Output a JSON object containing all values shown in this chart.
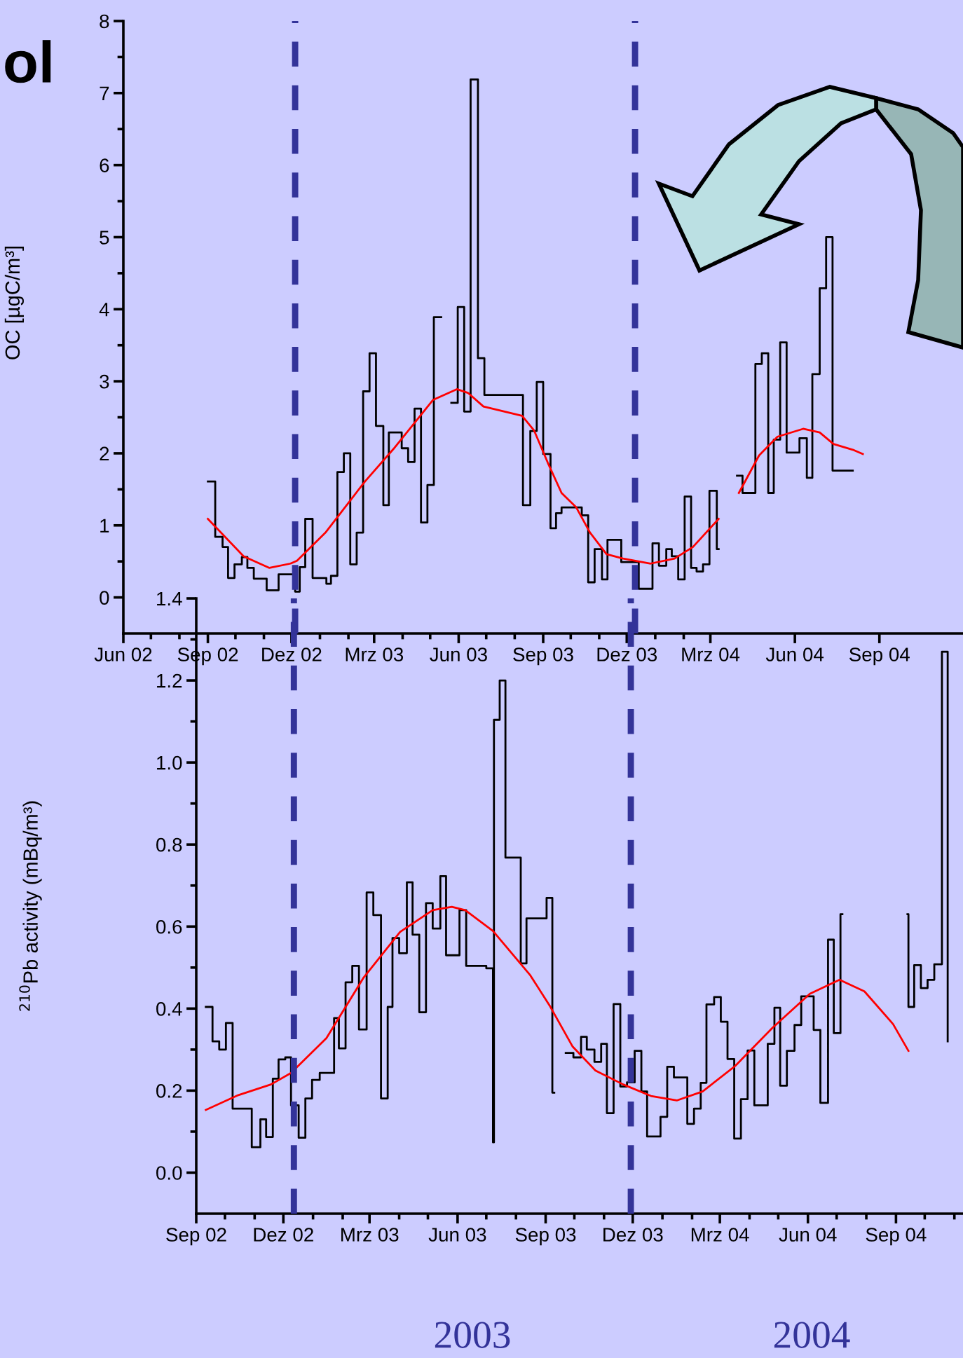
{
  "chart_data": [
    {
      "type": "step",
      "title": "ol",
      "ylabel": "OC [µgC/m³]",
      "xlim": [
        "2002-06-01",
        "2004-12-01"
      ],
      "xticks": [
        {
          "value": "2002-06-01",
          "label": "Jun 02"
        },
        {
          "value": "2002-07-01",
          "label": null
        },
        {
          "value": "2002-08-01",
          "label": null
        },
        {
          "value": "2002-09-01",
          "label": "Sep 02"
        },
        {
          "value": "2002-10-01",
          "label": null
        },
        {
          "value": "2002-11-01",
          "label": null
        },
        {
          "value": "2002-12-01",
          "label": "Dez 02"
        },
        {
          "value": "2003-01-01",
          "label": null
        },
        {
          "value": "2003-02-01",
          "label": null
        },
        {
          "value": "2003-03-01",
          "label": "Mrz 03"
        },
        {
          "value": "2003-04-01",
          "label": null
        },
        {
          "value": "2003-05-01",
          "label": null
        },
        {
          "value": "2003-06-01",
          "label": "Jun 03"
        },
        {
          "value": "2003-07-01",
          "label": null
        },
        {
          "value": "2003-08-01",
          "label": null
        },
        {
          "value": "2003-09-01",
          "label": "Sep 03"
        },
        {
          "value": "2003-10-01",
          "label": null
        },
        {
          "value": "2003-11-01",
          "label": null
        },
        {
          "value": "2003-12-01",
          "label": "Dez 03"
        },
        {
          "value": "2004-01-01",
          "label": null
        },
        {
          "value": "2004-02-01",
          "label": null
        },
        {
          "value": "2004-03-01",
          "label": "Mrz 04"
        },
        {
          "value": "2004-06-01",
          "label": "Jun 04"
        },
        {
          "value": "2004-09-01",
          "label": "Sep 04"
        }
      ],
      "ylim": [
        -0.5,
        8
      ],
      "yticks": [
        0,
        {
          "value": 0.5,
          "label": null
        },
        1,
        {
          "value": 1.5,
          "label": null
        },
        2,
        {
          "value": 2.5,
          "label": null
        },
        3,
        {
          "value": 3.5,
          "label": null
        },
        4,
        {
          "value": 4.5,
          "label": null
        },
        5,
        {
          "value": 5.5,
          "label": null
        },
        6,
        {
          "value": 6.5,
          "label": null
        },
        7,
        {
          "value": 7.5,
          "label": null
        },
        8
      ],
      "ref_lines": [
        {
          "axis": "x",
          "value": "2002-12-05",
          "color": "#333399",
          "line_style": "dashed"
        },
        {
          "axis": "x",
          "value": "2003-12-10",
          "color": "#333399",
          "line_style": "dashed"
        }
      ],
      "series": [
        {
          "type": "step",
          "color": "#000000",
          "x": [
            "2002-09-01",
            "2002-09-09",
            "2002-09-17",
            "2002-09-23",
            "2002-09-30",
            "2002-10-08",
            "2002-10-14",
            "2002-10-21",
            "2002-11-04",
            "2002-11-17",
            "2002-12-05",
            "2002-12-10",
            "2002-12-16",
            "2002-12-24",
            "2003-01-08",
            "2003-01-13",
            "2003-01-20",
            "2003-01-27",
            "2003-02-03",
            "2003-02-10",
            "2003-02-17",
            "2003-02-24",
            "2003-03-03",
            "2003-03-11",
            "2003-03-17",
            "2003-03-31",
            "2003-04-07",
            "2003-04-14",
            "2003-04-21",
            "2003-04-28",
            "2003-05-05",
            "2003-05-13",
            "2003-05-24",
            "2003-05-31",
            "2003-06-07",
            "2003-06-14",
            "2003-06-22",
            "2003-06-29",
            "2003-08-10",
            "2003-08-18",
            "2003-08-25",
            "2003-09-01",
            "2003-09-09",
            "2003-09-15",
            "2003-09-21",
            "2003-10-13",
            "2003-10-20",
            "2003-10-27",
            "2003-11-04",
            "2003-11-10",
            "2003-11-25",
            "2003-12-14",
            "2003-12-29",
            "2004-01-05",
            "2004-01-13",
            "2004-01-19",
            "2004-01-26",
            "2004-02-02",
            "2004-02-09",
            "2004-02-15",
            "2004-02-22",
            "2004-02-29",
            "2004-03-08",
            "2004-03-10",
            "2004-03-30",
            "2004-04-05",
            "2004-04-19",
            "2004-04-26",
            "2004-05-03",
            "2004-05-09",
            "2004-05-16",
            "2004-05-23",
            "2004-06-06",
            "2004-06-14",
            "2004-06-20",
            "2004-06-28",
            "2004-07-05",
            "2004-07-12",
            "2004-08-03"
          ],
          "values": [
            1.61,
            0.84,
            0.7,
            0.27,
            0.46,
            0.56,
            0.41,
            0.26,
            0.1,
            0.32,
            0.08,
            0.42,
            1.09,
            0.27,
            0.19,
            0.3,
            1.74,
            2.0,
            0.46,
            0.9,
            2.86,
            3.39,
            2.38,
            1.28,
            2.29,
            2.07,
            1.88,
            2.62,
            1.04,
            1.56,
            3.89,
            null,
            2.7,
            4.03,
            2.58,
            7.19,
            3.32,
            2.81,
            1.28,
            2.31,
            2.99,
            1.99,
            0.96,
            1.17,
            1.25,
            1.14,
            0.21,
            0.67,
            0.25,
            0.8,
            0.49,
            0.12,
            0.75,
            0.44,
            0.67,
            0.57,
            0.25,
            1.4,
            0.41,
            0.36,
            0.46,
            1.48,
            0.67,
            null,
            1.69,
            1.45,
            3.24,
            3.39,
            1.45,
            2.19,
            3.54,
            2.01,
            2.21,
            1.66,
            3.1,
            4.29,
            5.0,
            1.76,
            1.76
          ]
        },
        {
          "type": "line",
          "color": "#ff0000",
          "x": [
            "2002-09-01",
            "2002-10-10",
            "2002-11-07",
            "2002-11-30",
            "2002-12-07",
            "2003-01-07",
            "2003-02-19",
            "2003-03-22",
            "2003-05-04",
            "2003-05-30",
            "2003-06-11",
            "2003-06-28",
            "2003-08-09",
            "2003-08-22",
            "2003-09-06",
            "2003-09-21",
            "2003-10-07",
            "2003-10-22",
            "2003-11-09",
            "2003-11-27",
            "2003-12-27",
            "2004-01-22",
            "2004-02-11",
            "2004-03-10",
            "2004-03-20",
            "2004-04-01",
            "2004-04-23",
            "2004-05-13",
            "2004-06-10",
            "2004-06-28",
            "2004-07-13",
            "2004-08-03",
            "2004-08-14"
          ],
          "values": [
            1.09,
            0.57,
            0.41,
            0.47,
            0.51,
            0.9,
            1.61,
            2.06,
            2.74,
            2.89,
            2.84,
            2.65,
            2.52,
            2.32,
            1.87,
            1.45,
            1.25,
            0.9,
            0.6,
            0.54,
            0.47,
            0.54,
            0.7,
            1.09,
            null,
            1.45,
            1.97,
            2.23,
            2.34,
            2.29,
            2.13,
            2.05,
            1.99
          ]
        }
      ]
    },
    {
      "type": "step",
      "ylabel": "$^{210}$Pb activity (mBq/m³)",
      "annotations": [
        "2003",
        "2004"
      ],
      "xlim": [
        "2002-09-01",
        "2004-11-10"
      ],
      "xticks": [
        {
          "value": "2002-09-01",
          "label": "Sep 02"
        },
        {
          "value": "2002-10-01",
          "label": null
        },
        {
          "value": "2002-11-01",
          "label": null
        },
        {
          "value": "2002-12-01",
          "label": "Dez 02"
        },
        {
          "value": "2003-01-01",
          "label": null
        },
        {
          "value": "2003-02-01",
          "label": null
        },
        {
          "value": "2003-03-01",
          "label": "Mrz 03"
        },
        {
          "value": "2003-04-01",
          "label": null
        },
        {
          "value": "2003-05-01",
          "label": null
        },
        {
          "value": "2003-06-01",
          "label": "Jun 03"
        },
        {
          "value": "2003-07-01",
          "label": null
        },
        {
          "value": "2003-08-01",
          "label": null
        },
        {
          "value": "2003-09-01",
          "label": "Sep 03"
        },
        {
          "value": "2003-10-01",
          "label": null
        },
        {
          "value": "2003-11-01",
          "label": null
        },
        {
          "value": "2003-12-01",
          "label": "Dez 03"
        },
        {
          "value": "2004-01-01",
          "label": null
        },
        {
          "value": "2004-02-01",
          "label": null
        },
        {
          "value": "2004-03-01",
          "label": "Mrz 04"
        },
        {
          "value": "2004-04-01",
          "label": null
        },
        {
          "value": "2004-05-01",
          "label": null
        },
        {
          "value": "2004-06-01",
          "label": "Jun 04"
        },
        {
          "value": "2004-07-01",
          "label": null
        },
        {
          "value": "2004-08-01",
          "label": null
        },
        {
          "value": "2004-09-01",
          "label": "Sep 04"
        },
        {
          "value": "2004-10-01",
          "label": null
        },
        {
          "value": "2004-11-01",
          "label": null
        }
      ],
      "ylim": [
        -0.1,
        1.4
      ],
      "yticks": [
        {
          "value": 0,
          "label": "0.0"
        },
        {
          "value": 0.1,
          "label": null
        },
        0.2,
        {
          "value": 0.3,
          "label": null
        },
        0.4,
        {
          "value": 0.5,
          "label": null
        },
        0.6,
        {
          "value": 0.7,
          "label": null
        },
        0.8,
        {
          "value": 0.9,
          "label": null
        },
        {
          "value": 1,
          "label": "1.0"
        },
        {
          "value": 1.1,
          "label": null
        },
        1.2,
        {
          "value": 1.3,
          "label": null
        },
        1.4
      ],
      "ref_lines": [
        {
          "axis": "x",
          "value": "2002-12-12",
          "color": "#333399",
          "line_style": "dashed"
        },
        {
          "axis": "x",
          "value": "2003-11-29",
          "color": "#333399",
          "line_style": "dashed"
        }
      ],
      "series": [
        {
          "type": "step",
          "color": "#000000",
          "x": [
            "2002-09-11",
            "2002-09-18",
            "2002-09-25",
            "2002-10-02",
            "2002-10-09",
            "2002-10-29",
            "2002-11-07",
            "2002-11-13",
            "2002-11-20",
            "2002-11-26",
            "2002-12-03",
            "2002-12-09",
            "2002-12-17",
            "2002-12-24",
            "2002-12-31",
            "2003-01-08",
            "2003-01-23",
            "2003-01-28",
            "2003-02-04",
            "2003-02-11",
            "2003-02-18",
            "2003-02-26",
            "2003-03-05",
            "2003-03-13",
            "2003-03-20",
            "2003-03-25",
            "2003-04-01",
            "2003-04-09",
            "2003-04-15",
            "2003-04-22",
            "2003-04-29",
            "2003-05-06",
            "2003-05-14",
            "2003-05-20",
            "2003-06-03",
            "2003-06-10",
            "2003-07-01",
            "2003-07-08",
            "2003-07-09",
            "2003-07-15",
            "2003-07-21",
            "2003-08-06",
            "2003-08-12",
            "2003-09-02",
            "2003-09-08",
            "2003-09-10",
            "2003-09-22",
            "2003-09-30",
            "2003-10-08",
            "2003-10-14",
            "2003-10-22",
            "2003-10-29",
            "2003-11-04",
            "2003-11-11",
            "2003-11-18",
            "2003-11-25",
            "2003-12-03",
            "2003-12-10",
            "2003-12-16",
            "2003-12-30",
            "2004-01-06",
            "2004-01-13",
            "2004-01-27",
            "2004-02-03",
            "2004-02-10",
            "2004-02-16",
            "2004-02-24",
            "2004-03-02",
            "2004-03-09",
            "2004-03-16",
            "2004-03-23",
            "2004-03-30",
            "2004-04-06",
            "2004-04-20",
            "2004-04-27",
            "2004-05-03",
            "2004-05-10",
            "2004-05-18",
            "2004-05-25",
            "2004-06-07",
            "2004-06-14",
            "2004-06-22",
            "2004-06-28",
            "2004-07-05",
            "2004-07-07",
            "2004-09-13",
            "2004-09-14",
            "2004-09-20",
            "2004-09-27",
            "2004-10-04",
            "2004-10-11",
            "2004-10-19",
            "2004-10-25"
          ],
          "values": [
            0.404,
            0.32,
            0.3,
            0.365,
            0.156,
            0.062,
            0.13,
            0.087,
            0.229,
            0.276,
            0.281,
            0.164,
            0.085,
            0.181,
            0.226,
            0.243,
            0.377,
            0.303,
            0.464,
            0.504,
            0.349,
            0.683,
            0.628,
            0.181,
            0.404,
            0.572,
            0.535,
            0.708,
            0.58,
            0.391,
            0.657,
            0.595,
            0.723,
            0.53,
            0.64,
            0.504,
            0.498,
            0.074,
            1.104,
            1.2,
            0.768,
            0.51,
            0.62,
            0.67,
            0.195,
            null,
            0.292,
            0.281,
            0.331,
            0.3,
            0.27,
            0.314,
            0.145,
            0.411,
            0.21,
            0.22,
            0.297,
            0.198,
            0.088,
            0.136,
            0.258,
            0.232,
            0.119,
            0.156,
            0.219,
            0.41,
            0.428,
            0.368,
            0.277,
            0.083,
            0.179,
            0.298,
            0.164,
            0.314,
            0.402,
            0.212,
            0.297,
            0.36,
            0.43,
            0.348,
            0.17,
            0.568,
            0.34,
            0.63,
            null,
            0.63,
            0.404,
            0.506,
            0.45,
            0.47,
            0.508,
            1.27,
            0.32
          ]
        },
        {
          "type": "line",
          "color": "#ff0000",
          "x": [
            "2002-09-11",
            "2002-10-15",
            "2002-11-18",
            "2002-12-09",
            "2003-01-15",
            "2003-02-23",
            "2003-04-02",
            "2003-05-06",
            "2003-05-26",
            "2003-06-09",
            "2003-07-08",
            "2003-08-16",
            "2003-09-05",
            "2003-09-29",
            "2003-10-23",
            "2003-11-21",
            "2003-12-20",
            "2004-01-16",
            "2004-02-12",
            "2004-03-17",
            "2004-04-25",
            "2004-06-03",
            "2004-07-04",
            "2004-07-30",
            "2004-08-29",
            "2004-09-14"
          ],
          "values": [
            0.153,
            0.189,
            0.215,
            0.243,
            0.328,
            0.476,
            0.587,
            0.64,
            0.648,
            0.64,
            0.589,
            0.481,
            0.408,
            0.308,
            0.249,
            0.215,
            0.187,
            0.176,
            0.198,
            0.26,
            0.353,
            0.436,
            0.47,
            0.442,
            0.362,
            0.297
          ]
        }
      ]
    }
  ]
}
